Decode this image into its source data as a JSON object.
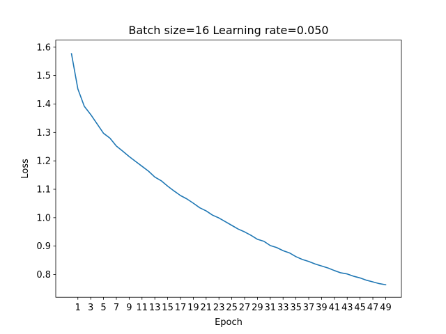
{
  "chart_data": {
    "type": "line",
    "title": "Batch size=16 Learning rate=0.050",
    "xlabel": "Epoch",
    "ylabel": "Loss",
    "xlim": [
      -2.45,
      51.45
    ],
    "ylim": [
      0.72,
      1.625
    ],
    "x_ticks": [
      1,
      3,
      5,
      7,
      9,
      11,
      13,
      15,
      17,
      19,
      21,
      23,
      25,
      27,
      29,
      31,
      33,
      35,
      37,
      39,
      41,
      43,
      45,
      47,
      49
    ],
    "y_ticks": [
      "0.8",
      "0.9",
      "1.0",
      "1.1",
      "1.2",
      "1.3",
      "1.4",
      "1.5",
      "1.6"
    ],
    "grid": false,
    "series": [
      {
        "color": "#1f77b4",
        "x": [
          0,
          1,
          2,
          3,
          4,
          5,
          6,
          7,
          8,
          9,
          10,
          11,
          12,
          13,
          14,
          15,
          16,
          17,
          18,
          19,
          20,
          21,
          22,
          23,
          24,
          25,
          26,
          27,
          28,
          29,
          30,
          31,
          32,
          33,
          34,
          35,
          36,
          37,
          38,
          39,
          40,
          41,
          42,
          43,
          44,
          45,
          46,
          47,
          48,
          49
        ],
        "values": [
          1.577,
          1.453,
          1.392,
          1.363,
          1.33,
          1.297,
          1.28,
          1.252,
          1.234,
          1.215,
          1.198,
          1.181,
          1.164,
          1.143,
          1.13,
          1.111,
          1.094,
          1.078,
          1.066,
          1.051,
          1.035,
          1.024,
          1.009,
          0.999,
          0.986,
          0.973,
          0.96,
          0.95,
          0.938,
          0.924,
          0.917,
          0.902,
          0.895,
          0.884,
          0.876,
          0.863,
          0.853,
          0.846,
          0.837,
          0.83,
          0.823,
          0.814,
          0.806,
          0.802,
          0.794,
          0.788,
          0.78,
          0.774,
          0.768,
          0.764
        ]
      }
    ]
  }
}
